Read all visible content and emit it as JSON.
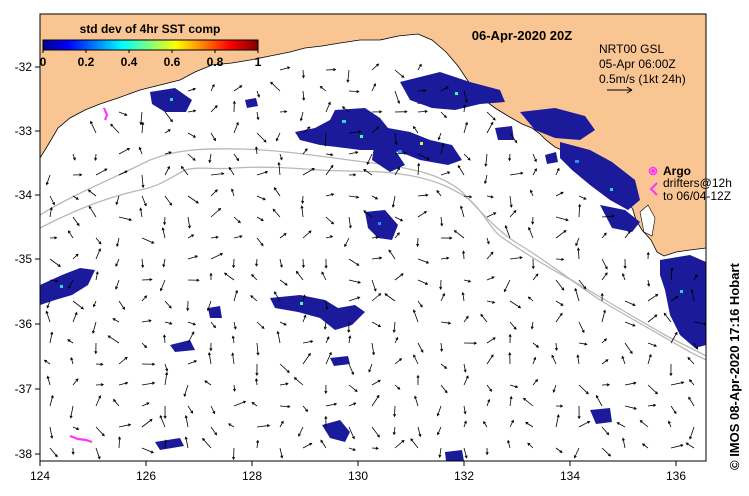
{
  "map": {
    "date_title": "06-Apr-2020 20Z",
    "lon_ticks": [
      "124",
      "126",
      "128",
      "130",
      "132",
      "134",
      "136"
    ],
    "lat_ticks": [
      "-32",
      "-33",
      "-34",
      "-35",
      "-36",
      "-37",
      "-38"
    ],
    "lon_range": [
      124,
      136.6
    ],
    "lat_range": [
      -38.1,
      -31.3
    ],
    "colors": {
      "land": "#f9c592",
      "ocean": "#ffffff",
      "sst_patch": "#1a1a9a",
      "drifter": "#ff33ff",
      "contour": "#b8b8b8",
      "arrow": "#000000"
    }
  },
  "colorbar": {
    "title": "std dev of 4hr SST comp",
    "ticks": [
      "0",
      "0.2",
      "0.4",
      "0.6",
      "0.8",
      "1"
    ],
    "colormap": "jet"
  },
  "legend": {
    "product": "NRT00 GSL",
    "time": "05-Apr 06:00Z",
    "scale": "0.5m/s (1kt 24h)",
    "argo_label": "Argo",
    "drifters_line1": "drifters@12h",
    "drifters_line2": "to 06/04-12Z"
  },
  "credit": "© IMOS 08-Apr-2020 17:16 Hobart"
}
